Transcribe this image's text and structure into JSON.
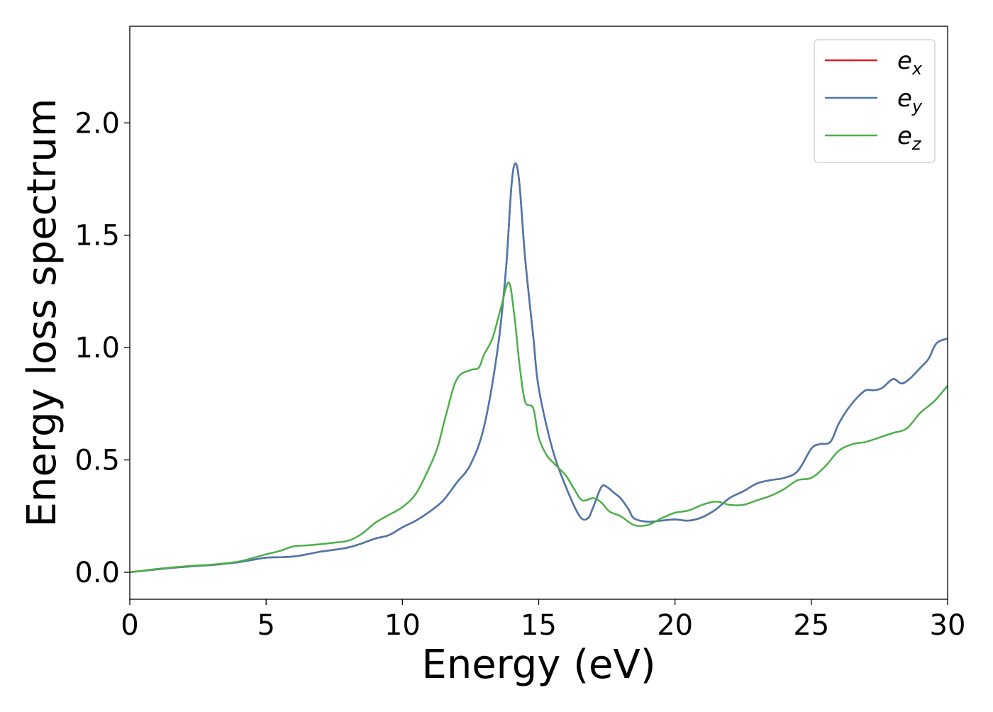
{
  "chart_data": {
    "type": "line",
    "title": "",
    "xlabel": "Energy (eV)",
    "ylabel": "Energy loss spectrum",
    "xlim": [
      0,
      30
    ],
    "ylim": [
      -0.12,
      2.43
    ],
    "xticks": [
      0,
      5,
      10,
      15,
      20,
      25,
      30
    ],
    "xtick_labels": [
      "0",
      "5",
      "10",
      "15",
      "20",
      "25",
      "30"
    ],
    "yticks": [
      0.0,
      0.5,
      1.0,
      1.5,
      2.0
    ],
    "ytick_labels": [
      "0.0",
      "0.5",
      "1.0",
      "1.5",
      "2.0"
    ],
    "grid": false,
    "legend_position": "top-right",
    "series": [
      {
        "name": "e",
        "subscript": "x",
        "color": "#e41a1c",
        "x": [
          0,
          1,
          2,
          3,
          3.5,
          4,
          4.5,
          5,
          5.5,
          6,
          6.5,
          7,
          7.5,
          8,
          8.5,
          9,
          9.5,
          10,
          10.5,
          11,
          11.5,
          12,
          12.5,
          13,
          13.5,
          13.8,
          14,
          14.15,
          14.3,
          14.5,
          14.8,
          15,
          15.5,
          16,
          16.5,
          16.8,
          17,
          17.3,
          17.5,
          17.8,
          18,
          18.3,
          18.5,
          19,
          19.5,
          20,
          20.5,
          21,
          21.5,
          22,
          22.5,
          23,
          23.5,
          24,
          24.5,
          25,
          25.3,
          25.7,
          26,
          26.3,
          26.7,
          27,
          27.3,
          27.6,
          28,
          28.3,
          28.6,
          29,
          29.3,
          29.6,
          30
        ],
        "y": [
          0.0,
          0.013,
          0.024,
          0.032,
          0.038,
          0.045,
          0.055,
          0.065,
          0.067,
          0.07,
          0.08,
          0.092,
          0.1,
          0.11,
          0.128,
          0.15,
          0.165,
          0.2,
          0.23,
          0.27,
          0.32,
          0.4,
          0.48,
          0.65,
          1.0,
          1.35,
          1.72,
          1.82,
          1.72,
          1.4,
          1.05,
          0.82,
          0.55,
          0.38,
          0.25,
          0.24,
          0.29,
          0.38,
          0.38,
          0.35,
          0.33,
          0.28,
          0.24,
          0.225,
          0.23,
          0.235,
          0.23,
          0.245,
          0.28,
          0.33,
          0.36,
          0.395,
          0.41,
          0.42,
          0.45,
          0.55,
          0.57,
          0.58,
          0.66,
          0.72,
          0.78,
          0.81,
          0.81,
          0.82,
          0.86,
          0.84,
          0.86,
          0.91,
          0.95,
          1.02,
          1.04
        ]
      },
      {
        "name": "e",
        "subscript": "y",
        "color": "#4a78ae",
        "x": [
          0,
          1,
          2,
          3,
          3.5,
          4,
          4.5,
          5,
          5.5,
          6,
          6.5,
          7,
          7.5,
          8,
          8.5,
          9,
          9.5,
          10,
          10.5,
          11,
          11.5,
          12,
          12.5,
          13,
          13.5,
          13.8,
          14,
          14.15,
          14.3,
          14.5,
          14.8,
          15,
          15.5,
          16,
          16.5,
          16.8,
          17,
          17.3,
          17.5,
          17.8,
          18,
          18.3,
          18.5,
          19,
          19.5,
          20,
          20.5,
          21,
          21.5,
          22,
          22.5,
          23,
          23.5,
          24,
          24.5,
          25,
          25.3,
          25.7,
          26,
          26.3,
          26.7,
          27,
          27.3,
          27.6,
          28,
          28.3,
          28.6,
          29,
          29.3,
          29.6,
          30
        ],
        "y": [
          0.0,
          0.013,
          0.024,
          0.032,
          0.038,
          0.045,
          0.055,
          0.065,
          0.067,
          0.07,
          0.08,
          0.092,
          0.1,
          0.11,
          0.128,
          0.15,
          0.165,
          0.2,
          0.23,
          0.27,
          0.32,
          0.4,
          0.48,
          0.65,
          1.0,
          1.35,
          1.72,
          1.82,
          1.72,
          1.4,
          1.05,
          0.82,
          0.55,
          0.38,
          0.25,
          0.24,
          0.29,
          0.38,
          0.38,
          0.35,
          0.33,
          0.28,
          0.24,
          0.225,
          0.23,
          0.235,
          0.23,
          0.245,
          0.28,
          0.33,
          0.36,
          0.395,
          0.41,
          0.42,
          0.45,
          0.55,
          0.57,
          0.58,
          0.66,
          0.72,
          0.78,
          0.81,
          0.81,
          0.82,
          0.86,
          0.84,
          0.86,
          0.91,
          0.95,
          1.02,
          1.04
        ]
      },
      {
        "name": "e",
        "subscript": "z",
        "color": "#4daf4a",
        "x": [
          0,
          1,
          2,
          3,
          3.5,
          4,
          4.5,
          5,
          5.5,
          6,
          6.5,
          7,
          7.5,
          8,
          8.5,
          9,
          9.5,
          10,
          10.5,
          11,
          11.3,
          11.6,
          12,
          12.5,
          12.8,
          13,
          13.3,
          13.6,
          13.9,
          14.1,
          14.3,
          14.5,
          14.8,
          15,
          15.3,
          15.6,
          16,
          16.3,
          16.6,
          17,
          17.3,
          17.6,
          18,
          18.5,
          19,
          19.5,
          20,
          20.5,
          21,
          21.5,
          22,
          22.5,
          23,
          23.5,
          24,
          24.5,
          25,
          25.5,
          26,
          26.5,
          27,
          27.5,
          28,
          28.5,
          29,
          29.5,
          30
        ],
        "y": [
          0.0,
          0.015,
          0.026,
          0.034,
          0.04,
          0.048,
          0.063,
          0.08,
          0.095,
          0.115,
          0.12,
          0.125,
          0.132,
          0.14,
          0.17,
          0.22,
          0.255,
          0.29,
          0.35,
          0.47,
          0.56,
          0.7,
          0.86,
          0.9,
          0.91,
          0.97,
          1.04,
          1.17,
          1.29,
          1.15,
          0.92,
          0.76,
          0.73,
          0.6,
          0.52,
          0.48,
          0.43,
          0.37,
          0.32,
          0.33,
          0.31,
          0.27,
          0.25,
          0.21,
          0.21,
          0.24,
          0.265,
          0.275,
          0.3,
          0.315,
          0.3,
          0.3,
          0.32,
          0.34,
          0.37,
          0.41,
          0.42,
          0.47,
          0.54,
          0.57,
          0.58,
          0.6,
          0.62,
          0.64,
          0.71,
          0.76,
          0.83
        ]
      }
    ]
  }
}
